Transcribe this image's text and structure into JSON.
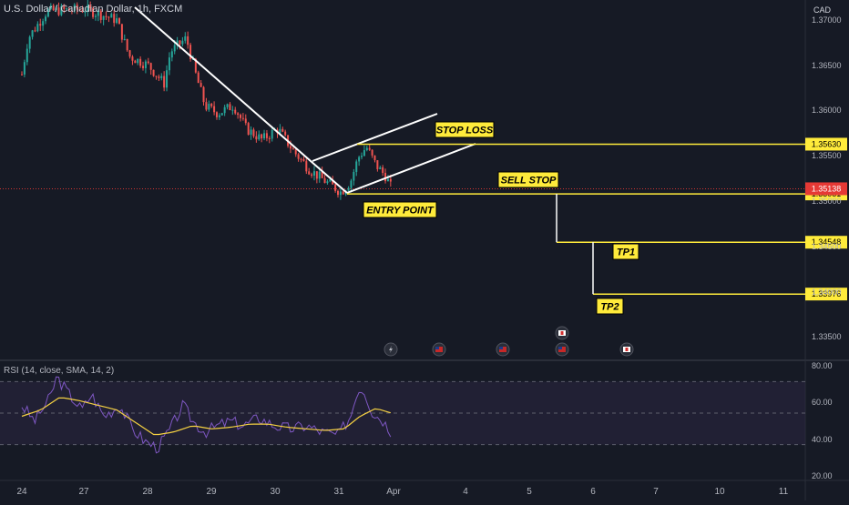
{
  "header": {
    "title": "U.S. Dollar / Canadian Dollar, 1h, FXCM",
    "currency": "CAD"
  },
  "rsi": {
    "title": "RSI (14, close, SMA, 14, 2)"
  },
  "colors": {
    "background": "#161a25",
    "up": "#26a69a",
    "down": "#ef5350",
    "trendline": "#ffffff",
    "level_line": "#ffeb3b",
    "label_bg": "#ffeb3b",
    "label_text": "#000000",
    "price_tag": "#e53935",
    "rsi_line": "#7e57c2",
    "rsi_sma": "#f5d142",
    "rsi_band": "#2a2540"
  },
  "chart_data": [
    {
      "type": "candlestick",
      "title": "U.S. Dollar / Canadian Dollar, 1h, FXCM",
      "x_ticks": [
        "24",
        "27",
        "28",
        "29",
        "30",
        "31",
        "Apr",
        "4",
        "5",
        "6",
        "7",
        "10",
        "11"
      ],
      "y_ticks": [
        "1.37000",
        "1.36500",
        "1.36000",
        "1.35500",
        "1.35000",
        "1.34500",
        "1.34000",
        "1.33500"
      ],
      "ylim": [
        1.3335,
        1.3712
      ],
      "current_price": "1.35138",
      "levels": [
        {
          "label": "STOP LOSS",
          "price": "1.35630",
          "value": 1.3563
        },
        {
          "label": "SELL STOP",
          "price": "1.35081",
          "value": 1.35081
        },
        {
          "label": "TP1",
          "price": "1.34548",
          "value": 1.34548
        },
        {
          "label": "TP2",
          "price": "1.33976",
          "value": 1.33976
        }
      ],
      "annotations": [
        "STOP LOSS",
        "SELL STOP",
        "ENTRY POINT",
        "TP1",
        "TP2"
      ],
      "trend_shape": [
        {
          "d": 0.0,
          "v": 1.364
        },
        {
          "d": 0.1,
          "v": 1.368
        },
        {
          "d": 0.4,
          "v": 1.371
        },
        {
          "d": 1.0,
          "v": 1.3712
        },
        {
          "d": 1.5,
          "v": 1.37
        },
        {
          "d": 1.7,
          "v": 1.366
        },
        {
          "d": 2.0,
          "v": 1.365
        },
        {
          "d": 2.25,
          "v": 1.363
        },
        {
          "d": 2.35,
          "v": 1.3665
        },
        {
          "d": 2.6,
          "v": 1.368
        },
        {
          "d": 2.75,
          "v": 1.364
        },
        {
          "d": 2.9,
          "v": 1.3605
        },
        {
          "d": 3.1,
          "v": 1.3597
        },
        {
          "d": 3.35,
          "v": 1.3606
        },
        {
          "d": 3.55,
          "v": 1.358
        },
        {
          "d": 3.8,
          "v": 1.3568
        },
        {
          "d": 4.05,
          "v": 1.358
        },
        {
          "d": 4.3,
          "v": 1.3555
        },
        {
          "d": 4.55,
          "v": 1.3535
        },
        {
          "d": 4.8,
          "v": 1.3522
        },
        {
          "d": 5.05,
          "v": 1.351
        },
        {
          "d": 5.2,
          "v": 1.3522
        },
        {
          "d": 5.32,
          "v": 1.3548
        },
        {
          "d": 5.45,
          "v": 1.356
        },
        {
          "d": 5.6,
          "v": 1.354
        },
        {
          "d": 5.75,
          "v": 1.3528
        },
        {
          "d": 5.85,
          "v": 1.35138
        }
      ]
    },
    {
      "type": "line",
      "title": "RSI (14, close, SMA, 14, 2)",
      "y_ticks": [
        "80.00",
        "60.00",
        "40.00",
        "20.00"
      ],
      "ylim": [
        20,
        80
      ],
      "bands": [
        70,
        50,
        30
      ],
      "rsi_shape": [
        {
          "d": 0.0,
          "v": 55
        },
        {
          "d": 0.2,
          "v": 45
        },
        {
          "d": 0.45,
          "v": 60
        },
        {
          "d": 0.55,
          "v": 73
        },
        {
          "d": 0.75,
          "v": 62
        },
        {
          "d": 0.95,
          "v": 52
        },
        {
          "d": 1.1,
          "v": 62
        },
        {
          "d": 1.3,
          "v": 48
        },
        {
          "d": 1.55,
          "v": 55
        },
        {
          "d": 1.75,
          "v": 40
        },
        {
          "d": 1.95,
          "v": 32
        },
        {
          "d": 2.15,
          "v": 28
        },
        {
          "d": 2.35,
          "v": 40
        },
        {
          "d": 2.55,
          "v": 55
        },
        {
          "d": 2.7,
          "v": 45
        },
        {
          "d": 2.9,
          "v": 38
        },
        {
          "d": 3.1,
          "v": 42
        },
        {
          "d": 3.3,
          "v": 45
        },
        {
          "d": 3.5,
          "v": 42
        },
        {
          "d": 3.75,
          "v": 47
        },
        {
          "d": 4.0,
          "v": 42
        },
        {
          "d": 4.25,
          "v": 40
        },
        {
          "d": 4.5,
          "v": 42
        },
        {
          "d": 4.75,
          "v": 38
        },
        {
          "d": 5.0,
          "v": 36
        },
        {
          "d": 5.2,
          "v": 48
        },
        {
          "d": 5.3,
          "v": 64
        },
        {
          "d": 5.4,
          "v": 66
        },
        {
          "d": 5.55,
          "v": 50
        },
        {
          "d": 5.7,
          "v": 46
        },
        {
          "d": 5.85,
          "v": 38
        }
      ],
      "sma_shape": [
        {
          "d": 0.0,
          "v": 48
        },
        {
          "d": 0.3,
          "v": 52
        },
        {
          "d": 0.6,
          "v": 60
        },
        {
          "d": 0.9,
          "v": 58
        },
        {
          "d": 1.2,
          "v": 55
        },
        {
          "d": 1.5,
          "v": 52
        },
        {
          "d": 1.8,
          "v": 44
        },
        {
          "d": 2.1,
          "v": 36
        },
        {
          "d": 2.4,
          "v": 38
        },
        {
          "d": 2.7,
          "v": 42
        },
        {
          "d": 3.0,
          "v": 40
        },
        {
          "d": 3.3,
          "v": 41
        },
        {
          "d": 3.6,
          "v": 43
        },
        {
          "d": 3.9,
          "v": 43
        },
        {
          "d": 4.2,
          "v": 41
        },
        {
          "d": 4.5,
          "v": 40
        },
        {
          "d": 4.8,
          "v": 39
        },
        {
          "d": 5.1,
          "v": 40
        },
        {
          "d": 5.35,
          "v": 48
        },
        {
          "d": 5.6,
          "v": 53
        },
        {
          "d": 5.85,
          "v": 50
        }
      ]
    }
  ]
}
